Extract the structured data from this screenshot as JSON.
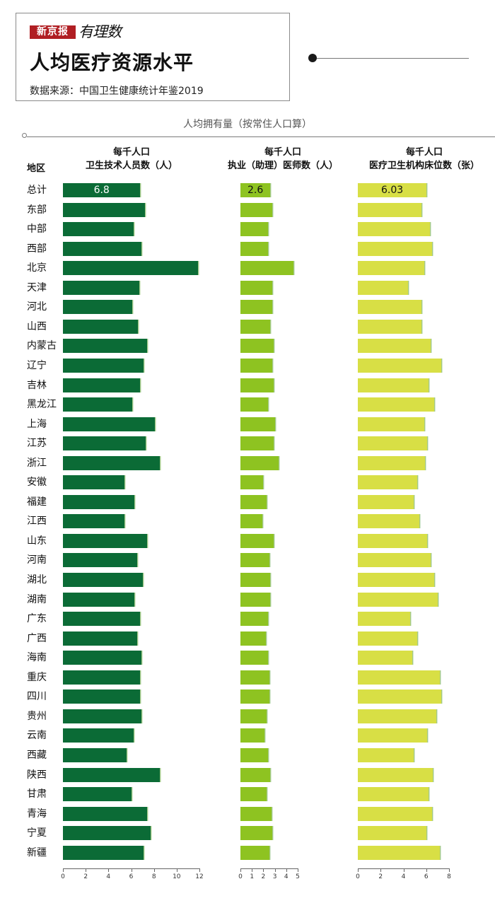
{
  "header": {
    "brand": "新京报",
    "brand_script": "有理数",
    "title": "人均医疗资源水平",
    "source": "数据来源：中国卫生健康统计年鉴2019"
  },
  "subtitle": "人均拥有量（按常住人口算）",
  "region_header": "地区",
  "columns": [
    {
      "line1": "每千人口",
      "line2": "卫生技术人员数（人）"
    },
    {
      "line1": "每千人口",
      "line2": "执业（助理）医师数（人）"
    },
    {
      "line1": "每千人口",
      "line2": "医疗卫生机构床位数（张）"
    }
  ],
  "colors": {
    "series1": "#0b6b36",
    "series2": "#8ec321",
    "series3": "#d8df45"
  },
  "chart_data": {
    "type": "bar",
    "orientation": "horizontal",
    "categories": [
      "总计",
      "东部",
      "中部",
      "西部",
      "北京",
      "天津",
      "河北",
      "山西",
      "内蒙古",
      "辽宁",
      "吉林",
      "黑龙江",
      "上海",
      "江苏",
      "浙江",
      "安徽",
      "福建",
      "江西",
      "山东",
      "河南",
      "湖北",
      "湖南",
      "广东",
      "广西",
      "海南",
      "重庆",
      "四川",
      "贵州",
      "云南",
      "西藏",
      "陕西",
      "甘肃",
      "青海",
      "宁夏",
      "新疆"
    ],
    "series": [
      {
        "name": "每千人口卫生技术人员数（人）",
        "values": [
          6.8,
          7.2,
          6.2,
          6.9,
          11.9,
          6.7,
          6.1,
          6.6,
          7.4,
          7.1,
          6.8,
          6.1,
          8.1,
          7.3,
          8.5,
          5.4,
          6.3,
          5.4,
          7.4,
          6.5,
          7.0,
          6.3,
          6.8,
          6.5,
          6.9,
          6.8,
          6.8,
          6.9,
          6.2,
          5.6,
          8.5,
          6.0,
          7.4,
          7.7,
          7.1
        ],
        "labels": [
          "6.8"
        ],
        "xlim": [
          0,
          12
        ],
        "ticks": [
          0,
          2,
          4,
          6,
          8,
          10,
          12
        ]
      },
      {
        "name": "每千人口执业（助理）医师数（人）",
        "values": [
          2.6,
          2.8,
          2.4,
          2.4,
          4.6,
          2.8,
          2.8,
          2.6,
          2.9,
          2.8,
          2.9,
          2.4,
          3.0,
          2.9,
          3.3,
          2.0,
          2.3,
          1.9,
          2.9,
          2.5,
          2.6,
          2.6,
          2.4,
          2.2,
          2.4,
          2.5,
          2.5,
          2.3,
          2.1,
          2.4,
          2.6,
          2.3,
          2.7,
          2.8,
          2.5
        ],
        "labels": [
          "2.6"
        ],
        "xlim": [
          0,
          5
        ],
        "ticks": [
          0,
          1,
          2,
          3,
          4,
          5
        ]
      },
      {
        "name": "每千人口医疗卫生机构床位数（张）",
        "values": [
          6.03,
          5.6,
          6.3,
          6.5,
          5.8,
          4.4,
          5.6,
          5.6,
          6.4,
          7.3,
          6.2,
          6.7,
          5.8,
          6.1,
          5.9,
          5.2,
          4.9,
          5.4,
          6.1,
          6.4,
          6.7,
          7.0,
          4.6,
          5.2,
          4.8,
          7.2,
          7.3,
          6.9,
          6.1,
          4.9,
          6.6,
          6.2,
          6.5,
          6.0,
          7.2
        ],
        "labels": [
          "6.03"
        ],
        "xlim": [
          0,
          8
        ],
        "ticks": [
          0,
          2,
          4,
          6,
          8
        ]
      }
    ],
    "grid": false,
    "legend": "none"
  }
}
